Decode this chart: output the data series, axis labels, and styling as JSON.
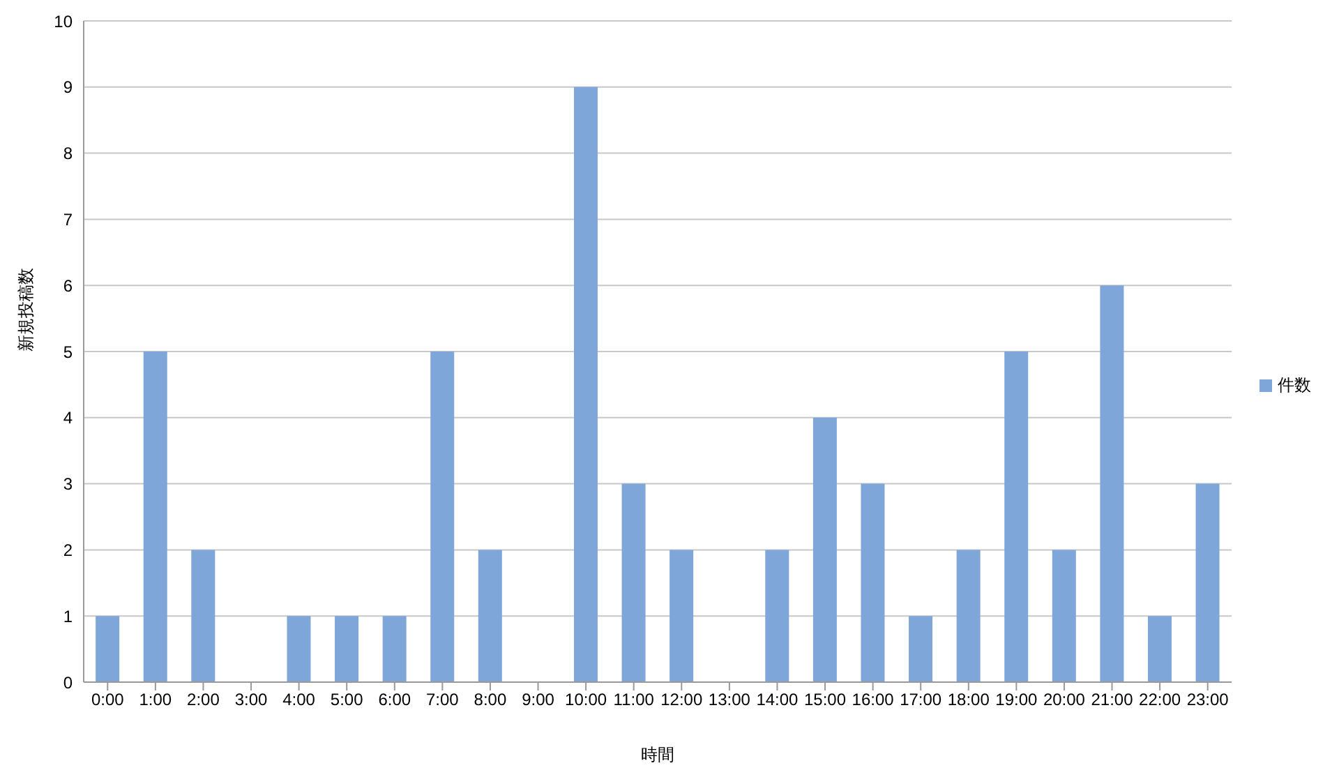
{
  "chart_data": {
    "type": "bar",
    "xlabel": "時間",
    "ylabel": "新規投稿数",
    "categories": [
      "0:00",
      "1:00",
      "2:00",
      "3:00",
      "4:00",
      "5:00",
      "6:00",
      "7:00",
      "8:00",
      "9:00",
      "10:00",
      "11:00",
      "12:00",
      "13:00",
      "14:00",
      "15:00",
      "16:00",
      "17:00",
      "18:00",
      "19:00",
      "20:00",
      "21:00",
      "22:00",
      "23:00"
    ],
    "series": [
      {
        "name": "件数",
        "color": "#7ea6d8",
        "values": [
          1,
          5,
          2,
          0,
          1,
          1,
          1,
          5,
          2,
          0,
          9,
          3,
          2,
          0,
          2,
          4,
          3,
          1,
          2,
          5,
          2,
          6,
          1,
          3
        ]
      }
    ],
    "ylim": [
      0,
      10
    ],
    "yticks": [
      0,
      1,
      2,
      3,
      4,
      5,
      6,
      7,
      8,
      9,
      10
    ],
    "grid": "y",
    "legend": "right"
  }
}
